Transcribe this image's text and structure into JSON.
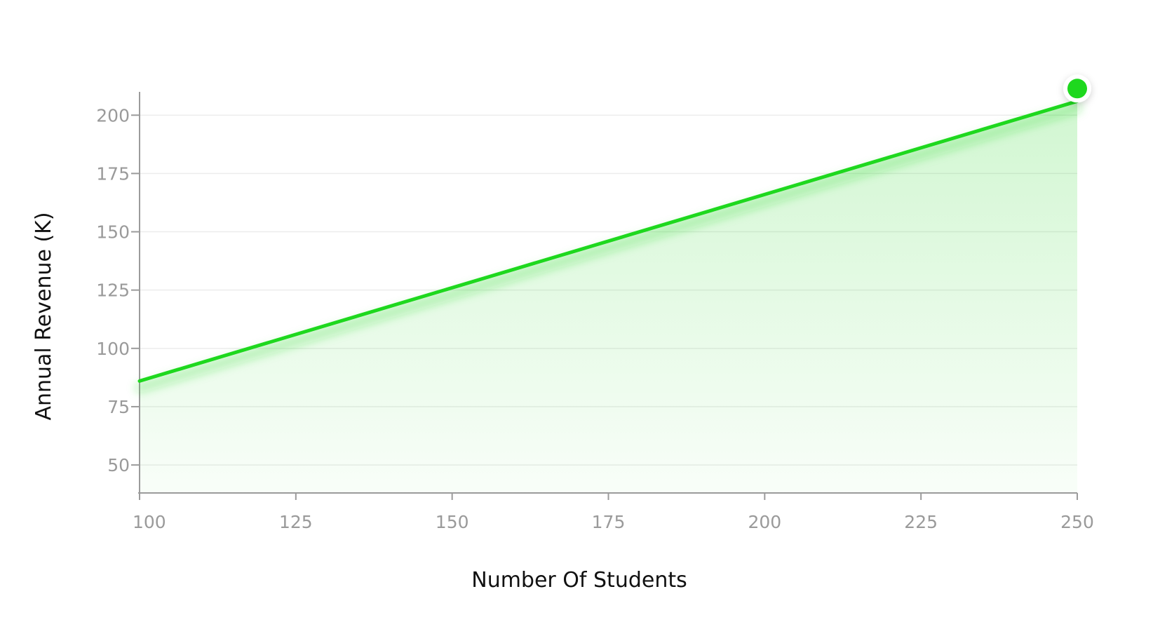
{
  "chart_data": {
    "type": "area",
    "title": "",
    "xlabel": "Number Of Students",
    "ylabel": "Annual Revenue (K)",
    "xlim": [
      100,
      250
    ],
    "ylim": [
      38,
      210
    ],
    "x_ticks": [
      100,
      125,
      150,
      175,
      200,
      225,
      250
    ],
    "y_ticks": [
      50,
      75,
      100,
      125,
      150,
      175,
      200
    ],
    "grid": true,
    "legend": "none",
    "series": [
      {
        "x": [
          100,
          250
        ],
        "y": [
          86,
          206
        ],
        "color": "#1ed81e",
        "end_marker": true
      }
    ]
  }
}
